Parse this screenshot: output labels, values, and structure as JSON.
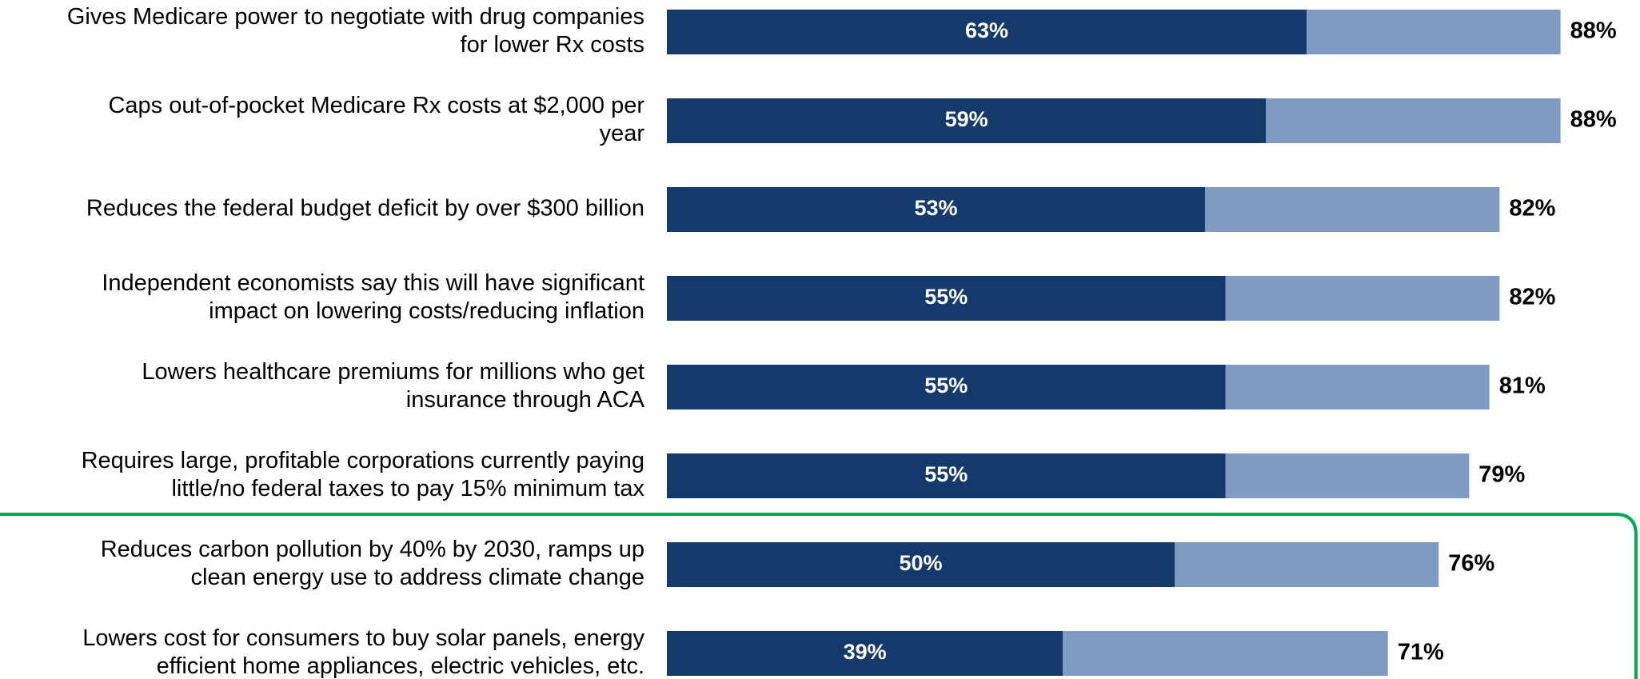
{
  "chart_data": {
    "type": "stacked-bar-horizontal",
    "categories": [
      [
        "Gives Medicare power to negotiate with drug companies",
        "for lower Rx costs"
      ],
      [
        "Caps out-of-pocket Medicare Rx costs at $2,000 per",
        "year"
      ],
      [
        "Reduces the federal budget deficit by over $300 billion"
      ],
      [
        "Independent economists say this will have significant",
        "impact on lowering costs/reducing inflation"
      ],
      [
        "Lowers healthcare premiums for millions who get",
        "insurance through ACA"
      ],
      [
        "Requires large, profitable corporations currently paying",
        "little/no federal taxes to pay 15% minimum tax"
      ],
      [
        "Reduces carbon pollution by 40% by 2030, ramps up",
        "clean energy use to address climate change"
      ],
      [
        "Lowers cost for consumers to buy solar panels, energy",
        "efficient home appliances, electric vehicles, etc."
      ]
    ],
    "series": [
      {
        "color": "#143a6b",
        "values": [
          63,
          59,
          53,
          55,
          55,
          55,
          50,
          39
        ],
        "value_labels": [
          "63%",
          "59%",
          "53%",
          "55%",
          "55%",
          "55%",
          "50%",
          "39%"
        ]
      },
      {
        "color": "#7f9bc4",
        "values": [
          25,
          29,
          29,
          27,
          26,
          24,
          26,
          32
        ]
      }
    ],
    "totals": [
      88,
      88,
      82,
      82,
      81,
      79,
      76,
      71
    ],
    "total_labels": [
      "88%",
      "88%",
      "82%",
      "82%",
      "81%",
      "79%",
      "76%",
      "71%"
    ]
  }
}
